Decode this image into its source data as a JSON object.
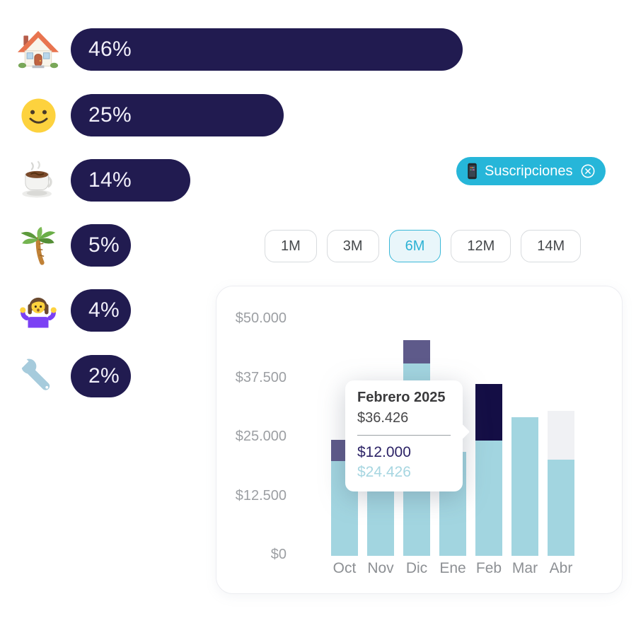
{
  "category_list": {
    "items": [
      {
        "icon": "house",
        "percent": 46,
        "label": "46%"
      },
      {
        "icon": "smiley",
        "percent": 25,
        "label": "25%"
      },
      {
        "icon": "coffee",
        "percent": 14,
        "label": "14%"
      },
      {
        "icon": "palm-tree",
        "percent": 5,
        "label": "5%"
      },
      {
        "icon": "person-shrugging",
        "percent": 4,
        "label": "4%"
      },
      {
        "icon": "wrench",
        "percent": 2,
        "label": "2%"
      }
    ]
  },
  "filter_chip": {
    "label": "Suscripciones",
    "icon": "mobile-phone",
    "close_icon": "close-circle"
  },
  "range_selector": {
    "options": [
      {
        "label": "1M",
        "selected": false
      },
      {
        "label": "3M",
        "selected": false
      },
      {
        "label": "6M",
        "selected": true
      },
      {
        "label": "12M",
        "selected": false
      },
      {
        "label": "14M",
        "selected": false
      }
    ]
  },
  "tooltip": {
    "title": "Febrero 2025",
    "total": "$36.426",
    "primary_value": "$12.000",
    "secondary_value": "$24.426"
  },
  "chart_data": {
    "type": "bar",
    "stacked": true,
    "title": "",
    "xlabel": "",
    "ylabel": "",
    "categories": [
      "Oct",
      "Nov",
      "Dic",
      "Ene",
      "Feb",
      "Mar",
      "Abr"
    ],
    "y_ticks": [
      {
        "value": 0,
        "label": "$0"
      },
      {
        "value": 12500,
        "label": "$12.500"
      },
      {
        "value": 25000,
        "label": "$25.000"
      },
      {
        "value": 37500,
        "label": "$37.500"
      },
      {
        "value": 50000,
        "label": "$50.000"
      }
    ],
    "ylim": [
      0,
      50000
    ],
    "grid": false,
    "legend": false,
    "bars": [
      {
        "month": "Oct",
        "segments": [
          {
            "value": 20000,
            "color": "light-blue"
          },
          {
            "value": 4500,
            "color": "purple"
          }
        ]
      },
      {
        "month": "Nov",
        "segments": [
          {
            "value": 26000,
            "color": "light-blue"
          }
        ]
      },
      {
        "month": "Dic",
        "segments": [
          {
            "value": 40700,
            "color": "light-blue"
          },
          {
            "value": 5000,
            "color": "purple"
          }
        ]
      },
      {
        "month": "Ene",
        "segments": [
          {
            "value": 22000,
            "color": "light-blue"
          }
        ]
      },
      {
        "month": "Feb",
        "segments": [
          {
            "value": 24426,
            "color": "light-blue"
          },
          {
            "value": 12000,
            "color": "navy"
          }
        ],
        "selected": true
      },
      {
        "month": "Mar",
        "segments": [
          {
            "value": 29300,
            "color": "light-blue"
          }
        ]
      },
      {
        "month": "Abr",
        "segments": [
          {
            "value": 20300,
            "color": "light-blue"
          },
          {
            "value": 10300,
            "color": "light-gray"
          }
        ]
      }
    ]
  },
  "colors": {
    "pill_navy": "#211b50",
    "chip_cyan": "#26b6d9",
    "bar_light_blue": "#a2d5e0",
    "bar_purple": "#5e5a8a",
    "bar_navy": "#140e45",
    "bar_light_gray": "#f0f1f4",
    "range_selected_text": "#2cb2d4",
    "tooltip_primary_text": "#2c2366",
    "tooltip_secondary_text": "#a7d6e1"
  }
}
